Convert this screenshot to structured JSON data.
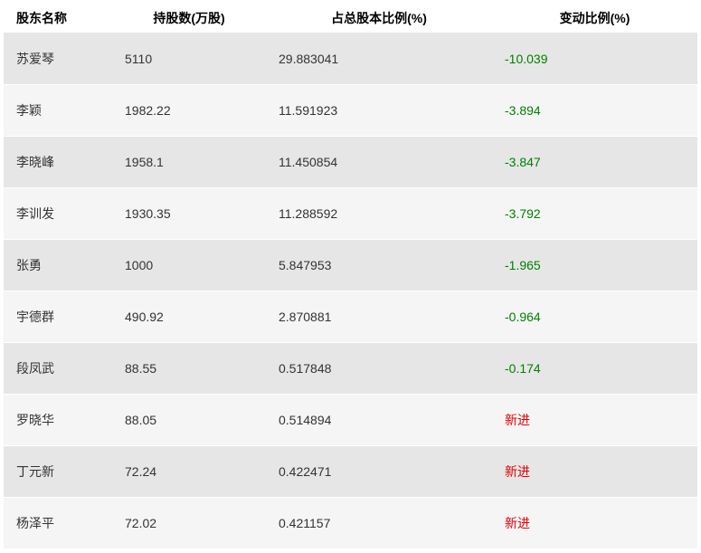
{
  "table": {
    "columns": [
      {
        "label": "股东名称",
        "align": "left"
      },
      {
        "label": "持股数(万股)",
        "align": "center"
      },
      {
        "label": "占总股本比例(%)",
        "align": "center"
      },
      {
        "label": "变动比例(%)",
        "align": "center"
      }
    ],
    "colors": {
      "header_bg": "#ffffff",
      "row_odd_bg": "#e6e6e6",
      "row_even_bg": "#f5f5f5",
      "text": "#333333",
      "negative": "#008000",
      "new_entry": "#e60000"
    },
    "rows": [
      {
        "name": "苏爱琴",
        "shares": "5110",
        "pct": "29.883041",
        "change": "-10.039",
        "change_type": "neg"
      },
      {
        "name": "李颖",
        "shares": "1982.22",
        "pct": "11.591923",
        "change": "-3.894",
        "change_type": "neg"
      },
      {
        "name": "李晓峰",
        "shares": "1958.1",
        "pct": "11.450854",
        "change": "-3.847",
        "change_type": "neg"
      },
      {
        "name": "李训发",
        "shares": "1930.35",
        "pct": "11.288592",
        "change": "-3.792",
        "change_type": "neg"
      },
      {
        "name": "张勇",
        "shares": "1000",
        "pct": "5.847953",
        "change": "-1.965",
        "change_type": "neg"
      },
      {
        "name": "宇德群",
        "shares": "490.92",
        "pct": "2.870881",
        "change": "-0.964",
        "change_type": "neg"
      },
      {
        "name": "段凤武",
        "shares": "88.55",
        "pct": "0.517848",
        "change": "-0.174",
        "change_type": "neg"
      },
      {
        "name": "罗晓华",
        "shares": "88.05",
        "pct": "0.514894",
        "change": "新进",
        "change_type": "new"
      },
      {
        "name": "丁元新",
        "shares": "72.24",
        "pct": "0.422471",
        "change": "新进",
        "change_type": "new"
      },
      {
        "name": "杨泽平",
        "shares": "72.02",
        "pct": "0.421157",
        "change": "新进",
        "change_type": "new"
      }
    ]
  }
}
